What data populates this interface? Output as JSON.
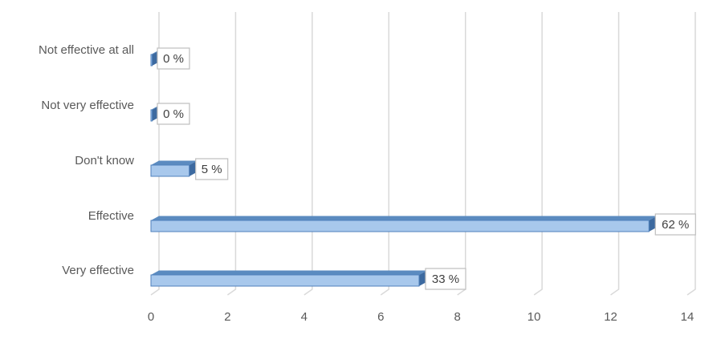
{
  "chart_data": {
    "type": "bar",
    "orientation": "horizontal",
    "categories": [
      "Very effective",
      "Effective",
      "Don't know",
      "Not very effective",
      "Not effective at all"
    ],
    "values": [
      7,
      13,
      1,
      0,
      0
    ],
    "data_labels": [
      "33 %",
      "62 %",
      "5 %",
      "0 %",
      "0 %"
    ],
    "xlim": [
      0,
      14
    ],
    "x_ticks": [
      0,
      2,
      4,
      6,
      8,
      10,
      12,
      14
    ],
    "x_tick_labels": [
      "0",
      "2",
      "4",
      "6",
      "8",
      "10",
      "12",
      "14"
    ],
    "grid": "vertical",
    "legend": "none",
    "colors": {
      "bar_front": "#a8c8ec",
      "bar_top": "#5b8bc0",
      "bar_side": "#3d6aa0",
      "grid": "#d9d9d9",
      "text": "#595959"
    }
  }
}
